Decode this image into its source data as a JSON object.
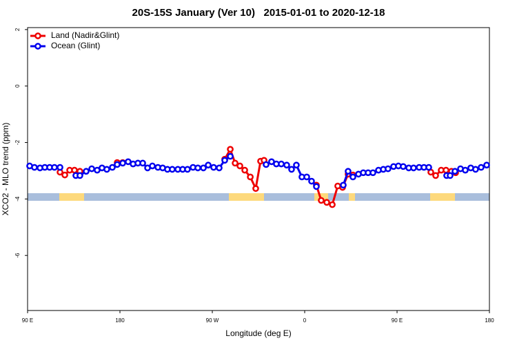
{
  "chart_data": {
    "type": "line",
    "title": "20S-15S January (Ver 10)   2015-01-01 to 2020-12-18",
    "xlabel": "Longitude (deg E)",
    "ylabel": "XCO2 - MLO trend (ppm)",
    "xlim": [
      90,
      540
    ],
    "ylim": [
      -7.95,
      2.07
    ],
    "xticks": [
      {
        "value": 90,
        "label": "90 E"
      },
      180,
      {
        "value": 270,
        "label": "90 W"
      },
      {
        "value": 360,
        "label": "0"
      },
      {
        "value": 450,
        "label": "90 E"
      },
      {
        "value": 540,
        "label": "180"
      }
    ],
    "yticks": [
      2,
      0,
      -2,
      -4,
      -6
    ],
    "legend": "top-left",
    "series": [
      {
        "name": "Land (Nadir&Glint)",
        "color": "#ee0000",
        "x": [
          121.6,
          126.3,
          131,
          135.7,
          141,
          null,
          177.3,
          182.7,
          null,
          282.1,
          287.5,
          292.2,
          296.9,
          301.6,
          307,
          312.3,
          317,
          320.4,
          null,
          371.4,
          376.1,
          381.5,
          386.9,
          392.2,
          396.9,
          402.3,
          407,
          null,
          482.9,
          487.6,
          493,
          497.7,
          503,
          507.1
        ],
        "values": [
          -3.05,
          -3.15,
          -2.98,
          -2.98,
          -3.02,
          null,
          -2.71,
          -2.71,
          null,
          -2.59,
          -2.24,
          -2.73,
          -2.83,
          -2.98,
          -3.22,
          -3.63,
          -2.66,
          -2.63,
          null,
          -3.51,
          -4.05,
          -4.12,
          -4.2,
          -3.54,
          -3.59,
          -3.12,
          -3.15,
          null,
          -3.05,
          -3.17,
          -2.98,
          -2.98,
          -3.02,
          -3.07
        ]
      },
      {
        "name": "Ocean (Glint)",
        "color": "#0000ee",
        "x": [
          92,
          96.7,
          102.1,
          106.8,
          111.5,
          116.2,
          121.6,
          null,
          137,
          141,
          147.1,
          152.5,
          157.8,
          162.5,
          167.2,
          172.6,
          177.3,
          182.7,
          188,
          192.8,
          197.5,
          202.2,
          206.9,
          211.6,
          217,
          221.6,
          226.3,
          231,
          236.4,
          241.1,
          245.8,
          251.2,
          255.9,
          261.3,
          266,
          271.3,
          276.7,
          282.1,
          287.5,
          null,
          322.4,
          327.7,
          332.4,
          337.2,
          342.5,
          347.2,
          351.9,
          357.3,
          362,
          366.7,
          371.4,
          null,
          397.6,
          402.3,
          407,
          412.4,
          417.1,
          421.8,
          426.5,
          431.9,
          436.6,
          441.2,
          446.6,
          451.3,
          456,
          461.4,
          466.1,
          471.5,
          476.2,
          480.9,
          null,
          498.3,
          501.7,
          506.4,
          511.8,
          516.5,
          521.8,
          526.5,
          531.9,
          537.3
        ],
        "values": [
          -2.83,
          -2.88,
          -2.9,
          -2.88,
          -2.88,
          -2.88,
          -2.88,
          null,
          -3.17,
          -3.17,
          -3.02,
          -2.93,
          -2.98,
          -2.9,
          -2.95,
          -2.88,
          -2.78,
          -2.73,
          -2.68,
          -2.76,
          -2.73,
          -2.73,
          -2.9,
          -2.83,
          -2.88,
          -2.9,
          -2.95,
          -2.95,
          -2.95,
          -2.95,
          -2.95,
          -2.88,
          -2.9,
          -2.9,
          -2.8,
          -2.88,
          -2.9,
          -2.63,
          -2.49,
          null,
          -2.78,
          -2.68,
          -2.76,
          -2.76,
          -2.8,
          -2.95,
          -2.8,
          -3.22,
          -3.22,
          -3.37,
          -3.56,
          null,
          -3.51,
          -3.02,
          -3.22,
          -3.12,
          -3.07,
          -3.07,
          -3.07,
          -2.98,
          -2.95,
          -2.93,
          -2.85,
          -2.83,
          -2.85,
          -2.9,
          -2.9,
          -2.88,
          -2.88,
          -2.88,
          null,
          -3.17,
          -3.17,
          -3.02,
          -2.93,
          -2.98,
          -2.9,
          -2.95,
          -2.88,
          -2.8
        ]
      }
    ]
  }
}
